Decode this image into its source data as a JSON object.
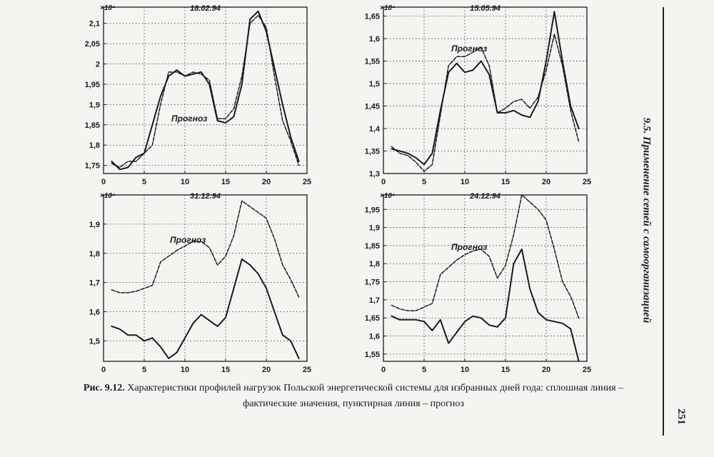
{
  "running_head": "9.5. Применение сетей с самоорганизацией",
  "page_number": "251",
  "caption": {
    "lead": "Рис. 9.12.",
    "text_line1": "Характеристики профилей нагрузок Польской энергетической системы для избранных дней года: сплошная линия –",
    "text_line2": "фактические значения, пунктирная линия – прогноз"
  },
  "chart_data": [
    {
      "type": "line",
      "title": "18.02.94",
      "scale_label": "×10⁴",
      "annotation": "Прогноз",
      "xlim": [
        0,
        25
      ],
      "ylim": [
        1.73,
        2.14
      ],
      "xticks": [
        0,
        5,
        10,
        15,
        20,
        25
      ],
      "yticks": [
        1.75,
        1.8,
        1.85,
        1.9,
        1.95,
        2,
        2.05,
        2.1
      ],
      "ytick_labels": [
        "1,75",
        "1,8",
        "1,85",
        "1,9",
        "1,95",
        "2",
        "2,05",
        "2,1"
      ],
      "grid": true,
      "x": [
        1,
        2,
        3,
        4,
        5,
        6,
        7,
        8,
        9,
        10,
        11,
        12,
        13,
        14,
        15,
        16,
        17,
        18,
        19,
        20,
        21,
        22,
        23,
        24
      ],
      "series": [
        {
          "style": "solid",
          "values": [
            1.76,
            1.74,
            1.745,
            1.77,
            1.78,
            1.85,
            1.92,
            1.97,
            1.985,
            1.97,
            1.975,
            1.98,
            1.95,
            1.86,
            1.855,
            1.87,
            1.95,
            2.11,
            2.13,
            2.08,
            1.99,
            1.9,
            1.82,
            1.76
          ]
        },
        {
          "style": "dashed",
          "values": [
            1.755,
            1.745,
            1.76,
            1.76,
            1.78,
            1.8,
            1.9,
            1.98,
            1.98,
            1.97,
            1.98,
            1.975,
            1.96,
            1.865,
            1.865,
            1.89,
            1.97,
            2.1,
            2.12,
            2.09,
            1.97,
            1.86,
            1.81,
            1.75
          ]
        }
      ]
    },
    {
      "type": "line",
      "title": "15.05.94",
      "scale_label": "×10⁴",
      "annotation": "Прогноз",
      "xlim": [
        0,
        25
      ],
      "ylim": [
        1.3,
        1.67
      ],
      "xticks": [
        0,
        5,
        10,
        15,
        20,
        25
      ],
      "yticks": [
        1.3,
        1.35,
        1.4,
        1.45,
        1.5,
        1.55,
        1.6,
        1.65
      ],
      "ytick_labels": [
        "1,3",
        "1,35",
        "1,4",
        "1,45",
        "1,5",
        "1,55",
        "1,6",
        "1,65"
      ],
      "grid": true,
      "x": [
        1,
        2,
        3,
        4,
        5,
        6,
        7,
        8,
        9,
        10,
        11,
        12,
        13,
        14,
        15,
        16,
        17,
        18,
        19,
        20,
        21,
        22,
        23,
        24
      ],
      "series": [
        {
          "style": "solid",
          "values": [
            1.355,
            1.35,
            1.345,
            1.335,
            1.32,
            1.345,
            1.44,
            1.525,
            1.545,
            1.525,
            1.53,
            1.55,
            1.52,
            1.435,
            1.435,
            1.44,
            1.43,
            1.425,
            1.46,
            1.55,
            1.66,
            1.55,
            1.45,
            1.4
          ]
        },
        {
          "style": "dashed",
          "values": [
            1.36,
            1.345,
            1.34,
            1.325,
            1.305,
            1.32,
            1.43,
            1.54,
            1.56,
            1.56,
            1.57,
            1.58,
            1.54,
            1.435,
            1.445,
            1.46,
            1.465,
            1.445,
            1.47,
            1.53,
            1.61,
            1.54,
            1.44,
            1.37
          ]
        }
      ]
    },
    {
      "type": "line",
      "title": "31.12.94",
      "scale_label": "×10⁴",
      "annotation": "Прогноз",
      "xlim": [
        0,
        25
      ],
      "ylim": [
        1.43,
        2.0
      ],
      "xticks": [
        0,
        5,
        10,
        15,
        20,
        25
      ],
      "yticks": [
        1.5,
        1.6,
        1.7,
        1.8,
        1.9
      ],
      "ytick_labels": [
        "1,5",
        "1,6",
        "1,7",
        "1,8",
        "1,9"
      ],
      "grid": true,
      "x": [
        1,
        2,
        3,
        4,
        5,
        6,
        7,
        8,
        9,
        10,
        11,
        12,
        13,
        14,
        15,
        16,
        17,
        18,
        19,
        20,
        21,
        22,
        23,
        24
      ],
      "series": [
        {
          "style": "solid",
          "values": [
            1.55,
            1.54,
            1.52,
            1.52,
            1.5,
            1.51,
            1.48,
            1.44,
            1.46,
            1.51,
            1.56,
            1.59,
            1.57,
            1.55,
            1.58,
            1.68,
            1.78,
            1.76,
            1.73,
            1.68,
            1.6,
            1.52,
            1.5,
            1.44
          ]
        },
        {
          "style": "dashed",
          "values": [
            1.675,
            1.665,
            1.665,
            1.67,
            1.68,
            1.69,
            1.77,
            1.79,
            1.81,
            1.825,
            1.84,
            1.84,
            1.82,
            1.76,
            1.79,
            1.86,
            1.98,
            1.96,
            1.94,
            1.92,
            1.85,
            1.76,
            1.71,
            1.65
          ]
        }
      ]
    },
    {
      "type": "line",
      "title": "24.12.94",
      "scale_label": "×10⁴",
      "annotation": "Прогноз",
      "xlim": [
        0,
        25
      ],
      "ylim": [
        1.53,
        1.99
      ],
      "xticks": [
        0,
        5,
        10,
        15,
        20,
        25
      ],
      "yticks": [
        1.55,
        1.6,
        1.65,
        1.7,
        1.75,
        1.8,
        1.85,
        1.9,
        1.95
      ],
      "ytick_labels": [
        "1,55",
        "1,6",
        "1,65",
        "1,7",
        "1,75",
        "1,8",
        "1,85",
        "1,9",
        "1,95"
      ],
      "grid": true,
      "x": [
        1,
        2,
        3,
        4,
        5,
        6,
        7,
        8,
        9,
        10,
        11,
        12,
        13,
        14,
        15,
        16,
        17,
        18,
        19,
        20,
        21,
        22,
        23,
        24
      ],
      "series": [
        {
          "style": "solid",
          "values": [
            1.655,
            1.645,
            1.645,
            1.645,
            1.64,
            1.615,
            1.645,
            1.58,
            1.61,
            1.64,
            1.655,
            1.65,
            1.63,
            1.625,
            1.65,
            1.8,
            1.84,
            1.73,
            1.665,
            1.645,
            1.64,
            1.635,
            1.62,
            1.53
          ]
        },
        {
          "style": "dashed",
          "values": [
            1.685,
            1.675,
            1.67,
            1.67,
            1.68,
            1.69,
            1.77,
            1.79,
            1.81,
            1.825,
            1.835,
            1.84,
            1.82,
            1.76,
            1.795,
            1.88,
            1.99,
            1.97,
            1.95,
            1.92,
            1.84,
            1.75,
            1.71,
            1.65
          ]
        }
      ]
    }
  ]
}
